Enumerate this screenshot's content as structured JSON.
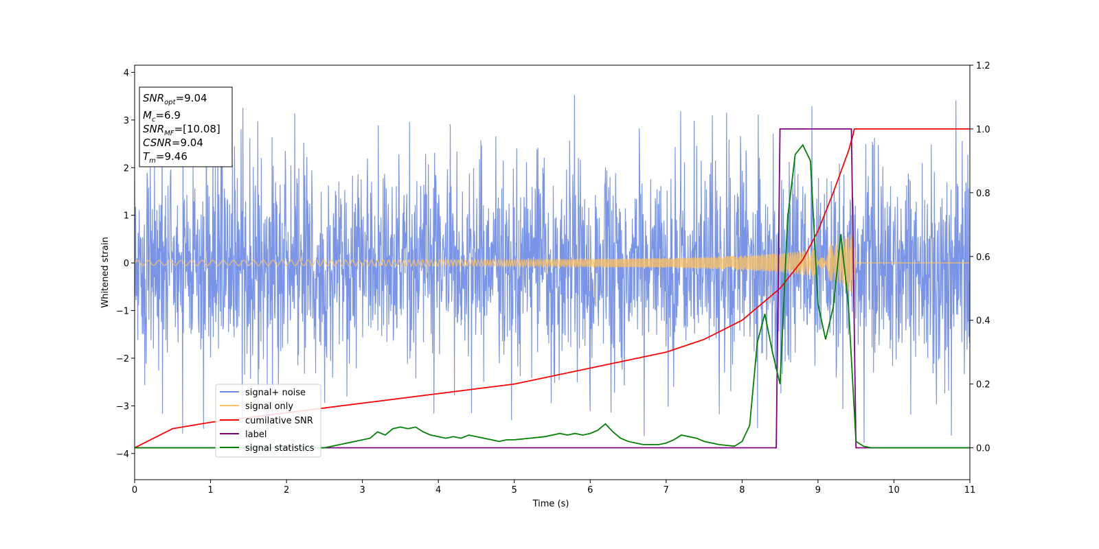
{
  "chart_data": {
    "type": "line",
    "xlabel": "Time (s)",
    "ylabel": "Whitened strain",
    "xlim": [
      0,
      11
    ],
    "ylim": [
      -4.55,
      4.15
    ],
    "y2lim": [
      -0.1,
      1.2
    ],
    "xticks": [
      "0",
      "1",
      "2",
      "3",
      "4",
      "5",
      "6",
      "7",
      "8",
      "9",
      "10",
      "11"
    ],
    "yticks": [
      "4",
      "3",
      "2",
      "1",
      "0",
      "−1",
      "−2",
      "−3",
      "−4"
    ],
    "y2ticks": [
      "1.2",
      "1.0",
      "0.8",
      "0.6",
      "0.4",
      "0.2",
      "0.0"
    ],
    "grid": false,
    "legend_position": "lower-left",
    "info_box": {
      "snr_opt": {
        "main": "SNR",
        "sub": "opt",
        "value": "=9.04"
      },
      "mc": {
        "main": "M",
        "sub": "c",
        "value": "=6.9"
      },
      "snr_mf": {
        "main": "SNR",
        "sub": "MF",
        "value": "=[10.08]"
      },
      "csnr": {
        "main": "CSNR",
        "value": "=9.04"
      },
      "tm": {
        "main": "T",
        "sub": "m",
        "value": "=9.46"
      }
    },
    "series": [
      {
        "name": "signal+ noise",
        "axis": "left",
        "color": "#6b8ae6",
        "description_values": {
          "typical_min": -2.5,
          "typical_max": 2.5,
          "peak_max": 3.65,
          "peak_min": -4.15
        }
      },
      {
        "name": "signal only",
        "axis": "left",
        "color": "#ffc15e",
        "envelope": {
          "x": [
            0,
            5,
            7,
            8,
            8.5,
            9,
            9.3,
            9.46,
            9.5,
            11
          ],
          "amplitude": [
            0.05,
            0.07,
            0.1,
            0.15,
            0.2,
            0.3,
            0.45,
            0.65,
            0.0,
            0.0
          ]
        }
      },
      {
        "name": "cumilative SNR",
        "axis": "right",
        "color": "#ff0000",
        "x": [
          0,
          0.5,
          1,
          2,
          3,
          4,
          5,
          6,
          7,
          7.5,
          8,
          8.5,
          8.8,
          9,
          9.2,
          9.4,
          9.46,
          9.47,
          11
        ],
        "y": [
          0.0,
          0.06,
          0.08,
          0.11,
          0.14,
          0.17,
          0.2,
          0.25,
          0.3,
          0.34,
          0.4,
          0.5,
          0.59,
          0.68,
          0.8,
          0.93,
          0.98,
          1.0,
          1.0
        ]
      },
      {
        "name": "label",
        "axis": "right",
        "color": "#800080",
        "x": [
          0,
          8.45,
          8.5,
          9.44,
          9.5,
          11
        ],
        "y": [
          0.0,
          0.0,
          1.0,
          1.0,
          0.0,
          0.0
        ]
      },
      {
        "name": "signal statistics",
        "axis": "right",
        "color": "#008000",
        "x": [
          0,
          2.5,
          2.7,
          2.9,
          3.1,
          3.2,
          3.3,
          3.4,
          3.5,
          3.6,
          3.7,
          3.8,
          3.9,
          4.0,
          4.1,
          4.2,
          4.3,
          4.4,
          4.5,
          4.6,
          4.7,
          4.8,
          4.9,
          5.0,
          5.2,
          5.4,
          5.5,
          5.6,
          5.7,
          5.8,
          5.9,
          6.0,
          6.1,
          6.2,
          6.3,
          6.4,
          6.5,
          6.6,
          6.7,
          6.8,
          6.9,
          7.0,
          7.1,
          7.2,
          7.3,
          7.4,
          7.5,
          7.7,
          7.9,
          8.0,
          8.1,
          8.2,
          8.3,
          8.4,
          8.5,
          8.6,
          8.7,
          8.8,
          8.9,
          9.0,
          9.1,
          9.2,
          9.3,
          9.4,
          9.5,
          9.6,
          9.7,
          9.8,
          10.0,
          11
        ],
        "y": [
          0.0,
          0.0,
          0.01,
          0.02,
          0.03,
          0.05,
          0.04,
          0.06,
          0.065,
          0.06,
          0.065,
          0.05,
          0.04,
          0.035,
          0.03,
          0.035,
          0.03,
          0.04,
          0.035,
          0.03,
          0.025,
          0.02,
          0.025,
          0.025,
          0.03,
          0.035,
          0.04,
          0.045,
          0.04,
          0.045,
          0.04,
          0.045,
          0.055,
          0.075,
          0.05,
          0.03,
          0.02,
          0.015,
          0.01,
          0.01,
          0.01,
          0.015,
          0.025,
          0.04,
          0.035,
          0.03,
          0.02,
          0.01,
          0.005,
          0.02,
          0.07,
          0.33,
          0.42,
          0.3,
          0.2,
          0.72,
          0.92,
          0.95,
          0.9,
          0.45,
          0.34,
          0.44,
          0.67,
          0.45,
          0.02,
          0.005,
          0.0,
          0.0,
          0.0,
          0.0
        ]
      }
    ]
  }
}
